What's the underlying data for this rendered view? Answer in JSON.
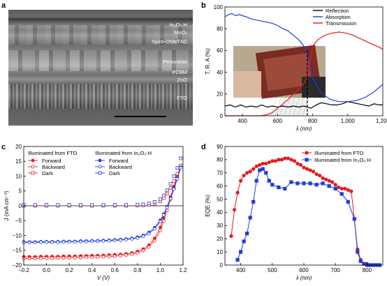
{
  "panels": {
    "a": {
      "letter": "a",
      "layers": [
        {
          "text": "In₂O₃:H"
        },
        {
          "text": "MoOₓ"
        },
        {
          "text": "Spiro-OMeTAD"
        },
        {
          "text": "Perovskite"
        },
        {
          "text": "PCBM"
        },
        {
          "text": "ZnO"
        },
        {
          "text": "FTO"
        }
      ]
    },
    "b": {
      "letter": "b"
    },
    "c": {
      "letter": "c"
    },
    "d": {
      "letter": "d"
    }
  },
  "chart_data": [
    {
      "id": "b",
      "type": "line",
      "xlabel": "λ (nm)",
      "ylabel": "T, R, A (%)",
      "xlim": [
        300,
        1200
      ],
      "ylim": [
        0,
        100
      ],
      "xticks": [
        400,
        600,
        800,
        1000,
        1200
      ],
      "xtick_labels": [
        "400",
        "600",
        "800",
        "1,000",
        "1,200"
      ],
      "yticks": [
        0,
        20,
        40,
        60,
        80,
        100
      ],
      "legend": {
        "position": "top-right",
        "entries": [
          "Reflection",
          "Absorption",
          "Transmission"
        ]
      },
      "colors": {
        "Reflection": "#000000",
        "Absorption": "#1f3bdc",
        "Transmission": "#e41a1c"
      },
      "series": [
        {
          "name": "Reflection",
          "x": [
            300,
            330,
            360,
            390,
            420,
            450,
            480,
            510,
            540,
            570,
            600,
            630,
            660,
            690,
            720,
            750,
            770,
            790,
            820,
            850,
            880,
            910,
            940,
            970,
            1000,
            1030,
            1060,
            1090,
            1120,
            1150,
            1180,
            1200
          ],
          "y": [
            9,
            10,
            8,
            10,
            8,
            9,
            8,
            10,
            8,
            9,
            8,
            9,
            8,
            9,
            8,
            9,
            8,
            7,
            10,
            12,
            11,
            10,
            10,
            11,
            13,
            12,
            11,
            10,
            9,
            11,
            10,
            10
          ]
        },
        {
          "name": "Absorption",
          "x": [
            300,
            320,
            340,
            360,
            380,
            400,
            420,
            450,
            480,
            510,
            540,
            570,
            600,
            630,
            660,
            690,
            720,
            740,
            760,
            770,
            780,
            800,
            850,
            900,
            950,
            1000,
            1050,
            1100,
            1150,
            1200
          ],
          "y": [
            91,
            93,
            94,
            92,
            93,
            92,
            91,
            89,
            88,
            87,
            86,
            85,
            83,
            80,
            78,
            74,
            70,
            66,
            62,
            58,
            50,
            34,
            21,
            15,
            13,
            13,
            14,
            17,
            22,
            29
          ]
        },
        {
          "name": "Transmission",
          "x": [
            300,
            400,
            500,
            540,
            570,
            600,
            630,
            660,
            690,
            720,
            740,
            760,
            770,
            780,
            800,
            830,
            870,
            910,
            950,
            990,
            1030,
            1070,
            1110,
            1150,
            1180,
            1200
          ],
          "y": [
            0,
            0,
            0,
            1,
            3,
            7,
            11,
            15,
            20,
            24,
            28,
            32,
            38,
            46,
            64,
            70,
            74,
            76,
            77,
            76,
            74,
            71,
            68,
            65,
            63,
            61
          ]
        }
      ],
      "annotations": [
        {
          "type": "dashed-vertical",
          "x": 770
        }
      ]
    },
    {
      "id": "c",
      "type": "scatter",
      "xlabel": "V (V)",
      "ylabel": "J (mA cm⁻²)",
      "xlim": [
        -0.2,
        1.2
      ],
      "ylim": [
        -20,
        20
      ],
      "xticks": [
        -0.2,
        0.0,
        0.2,
        0.4,
        0.6,
        0.8,
        1.0,
        1.2
      ],
      "xtick_labels": [
        "−0.2",
        "0.0",
        "0.2",
        "0.4",
        "0.6",
        "0.8",
        "1.0",
        "1.2"
      ],
      "yticks": [
        -20,
        -15,
        -10,
        -5,
        0,
        5,
        10,
        15,
        20
      ],
      "ytick_labels": [
        "−20",
        "−15",
        "−10",
        "−5",
        "0",
        "5",
        "10",
        "15",
        "20"
      ],
      "legend_groups": [
        {
          "title": "Illuminated from FTO",
          "color": "#e41a1c"
        },
        {
          "title": "Illuminated from In₂O₃:H",
          "color": "#1f3bdc"
        }
      ],
      "legend_entries": [
        "Forward",
        "Backward",
        "Dark"
      ],
      "series": [
        {
          "name": "Forward",
          "group": "Illuminated from FTO",
          "marker": "filled-circle",
          "x": [
            -0.2,
            -0.15,
            -0.1,
            -0.05,
            0,
            0.05,
            0.1,
            0.15,
            0.2,
            0.25,
            0.3,
            0.35,
            0.4,
            0.45,
            0.5,
            0.55,
            0.6,
            0.65,
            0.7,
            0.75,
            0.8,
            0.85,
            0.9,
            0.95,
            1.0,
            1.03,
            1.06,
            1.09,
            1.12,
            1.15,
            1.18
          ],
          "y": [
            -17.2,
            -17.2,
            -17.2,
            -17.1,
            -17.1,
            -17.1,
            -17.1,
            -17.0,
            -17.0,
            -17.0,
            -16.9,
            -16.9,
            -16.8,
            -16.8,
            -16.7,
            -16.6,
            -16.5,
            -16.4,
            -16.2,
            -15.9,
            -15.4,
            -14.6,
            -13.3,
            -11.0,
            -7.3,
            -4.2,
            -0.5,
            3.0,
            6.5,
            10.2,
            13.5
          ]
        },
        {
          "name": "Backward",
          "group": "Illuminated from FTO",
          "marker": "open-circle",
          "x": [
            -0.2,
            -0.15,
            -0.1,
            -0.05,
            0,
            0.05,
            0.1,
            0.15,
            0.2,
            0.25,
            0.3,
            0.35,
            0.4,
            0.45,
            0.5,
            0.55,
            0.6,
            0.65,
            0.7,
            0.75,
            0.8,
            0.85,
            0.9,
            0.95,
            1.0,
            1.03,
            1.06,
            1.09,
            1.12,
            1.15,
            1.18
          ],
          "y": [
            -17.8,
            -17.8,
            -17.8,
            -17.7,
            -17.7,
            -17.7,
            -17.6,
            -17.6,
            -17.6,
            -17.5,
            -17.5,
            -17.4,
            -17.4,
            -17.3,
            -17.2,
            -17.1,
            -17.0,
            -16.8,
            -16.6,
            -16.3,
            -15.9,
            -15.1,
            -13.9,
            -11.8,
            -8.3,
            -5.2,
            -1.5,
            2.2,
            5.8,
            9.6,
            13.2
          ]
        },
        {
          "name": "Dark",
          "group": "Illuminated from FTO",
          "marker": "open-square",
          "x": [
            -0.2,
            -0.1,
            0,
            0.1,
            0.2,
            0.3,
            0.4,
            0.5,
            0.6,
            0.7,
            0.8,
            0.85,
            0.9,
            0.95,
            1.0,
            1.03,
            1.06,
            1.09,
            1.12,
            1.15,
            1.18
          ],
          "y": [
            0,
            0,
            0,
            0,
            0,
            0,
            0,
            0,
            0,
            0,
            0.05,
            0.1,
            0.3,
            0.7,
            1.5,
            2.6,
            4.1,
            6.0,
            8.3,
            10.8,
            13.6
          ]
        },
        {
          "name": "Forward",
          "group": "Illuminated from In₂O₃:H",
          "marker": "filled-circle",
          "x": [
            -0.2,
            -0.15,
            -0.1,
            -0.05,
            0,
            0.05,
            0.1,
            0.15,
            0.2,
            0.25,
            0.3,
            0.35,
            0.4,
            0.45,
            0.5,
            0.55,
            0.6,
            0.65,
            0.7,
            0.75,
            0.8,
            0.85,
            0.9,
            0.95,
            1.0,
            1.03,
            1.06,
            1.09,
            1.12,
            1.15,
            1.18
          ],
          "y": [
            -12.2,
            -12.2,
            -12.2,
            -12.1,
            -12.1,
            -12.1,
            -12.1,
            -12.0,
            -12.0,
            -12.0,
            -11.9,
            -11.9,
            -11.8,
            -11.8,
            -11.7,
            -11.6,
            -11.5,
            -11.4,
            -11.2,
            -11.0,
            -10.6,
            -10.0,
            -9.0,
            -7.4,
            -4.9,
            -2.8,
            -0.3,
            2.6,
            5.8,
            9.3,
            13.0
          ]
        },
        {
          "name": "Backward",
          "group": "Illuminated from In₂O₃:H",
          "marker": "open-circle",
          "x": [
            -0.2,
            -0.15,
            -0.1,
            -0.05,
            0,
            0.05,
            0.1,
            0.15,
            0.2,
            0.25,
            0.3,
            0.35,
            0.4,
            0.45,
            0.5,
            0.55,
            0.6,
            0.65,
            0.7,
            0.75,
            0.8,
            0.85,
            0.9,
            0.95,
            1.0,
            1.03,
            1.06,
            1.09,
            1.12,
            1.15,
            1.18
          ],
          "y": [
            -12.4,
            -12.4,
            -12.4,
            -12.3,
            -12.3,
            -12.3,
            -12.3,
            -12.2,
            -12.2,
            -12.2,
            -12.1,
            -12.1,
            -12.0,
            -12.0,
            -11.9,
            -11.8,
            -11.7,
            -11.6,
            -11.4,
            -11.2,
            -10.9,
            -10.3,
            -9.4,
            -7.8,
            -5.3,
            -3.1,
            -0.6,
            2.4,
            5.6,
            9.1,
            12.8
          ]
        },
        {
          "name": "Dark",
          "group": "Illuminated from In₂O₃:H",
          "marker": "open-square",
          "x": [
            -0.2,
            -0.1,
            0,
            0.1,
            0.2,
            0.3,
            0.4,
            0.5,
            0.6,
            0.7,
            0.8,
            0.85,
            0.9,
            0.95,
            1.0,
            1.03,
            1.06,
            1.09,
            1.12,
            1.15,
            1.18
          ],
          "y": [
            0.3,
            0.3,
            0.3,
            0.3,
            0.3,
            0.3,
            0.3,
            0.3,
            0.3,
            0.3,
            0.4,
            0.5,
            0.8,
            1.3,
            2.2,
            3.5,
            5.2,
            7.4,
            10.0,
            12.8,
            16.0
          ]
        }
      ]
    },
    {
      "id": "d",
      "type": "line",
      "xlabel": "λ (nm)",
      "ylabel": "EQE (%)",
      "xlim": [
        350,
        850
      ],
      "ylim": [
        0,
        90
      ],
      "xticks": [
        400,
        500,
        600,
        700,
        800
      ],
      "yticks": [
        0,
        10,
        20,
        30,
        40,
        50,
        60,
        70,
        80,
        90
      ],
      "legend": {
        "position": "top-right",
        "entries": [
          "Illuminated from FTO",
          "Illuminated from In₂O₃:H"
        ]
      },
      "colors": {
        "Illuminated from FTO": "#e41a1c",
        "Illuminated from In₂O₃:H": "#1f3bdc"
      },
      "series": [
        {
          "name": "Illuminated from FTO",
          "marker": "circle",
          "x": [
            370,
            380,
            390,
            400,
            410,
            420,
            430,
            440,
            450,
            460,
            470,
            480,
            490,
            500,
            510,
            520,
            530,
            540,
            550,
            560,
            570,
            580,
            590,
            600,
            610,
            620,
            630,
            640,
            650,
            660,
            670,
            680,
            690,
            700,
            710,
            720,
            730,
            740,
            750,
            760,
            770,
            780,
            790,
            800,
            810,
            820,
            830,
            840
          ],
          "y": [
            22,
            42,
            55,
            64,
            68,
            70,
            71,
            73,
            75,
            76,
            77,
            77,
            78,
            79,
            79,
            80,
            80,
            81,
            81,
            80,
            79,
            77,
            76,
            74,
            73,
            72,
            71,
            69,
            68,
            66,
            65,
            64,
            63,
            61,
            59,
            58,
            58,
            57,
            56,
            35,
            12,
            4,
            1,
            1,
            0,
            0,
            0,
            0
          ]
        },
        {
          "name": "Illuminated from In₂O₃:H",
          "marker": "square",
          "x": [
            390,
            400,
            410,
            420,
            430,
            440,
            450,
            460,
            470,
            480,
            490,
            500,
            520,
            540,
            560,
            580,
            600,
            620,
            640,
            660,
            680,
            700,
            720,
            740,
            760,
            770,
            780,
            790,
            800,
            810,
            820,
            830,
            840
          ],
          "y": [
            4,
            10,
            18,
            24,
            36,
            48,
            64,
            72,
            73,
            70,
            64,
            61,
            59,
            58,
            63,
            62,
            62,
            62,
            61,
            62,
            60,
            58,
            54,
            48,
            35,
            10,
            3,
            1,
            0,
            0,
            0,
            0,
            0
          ]
        }
      ]
    }
  ]
}
